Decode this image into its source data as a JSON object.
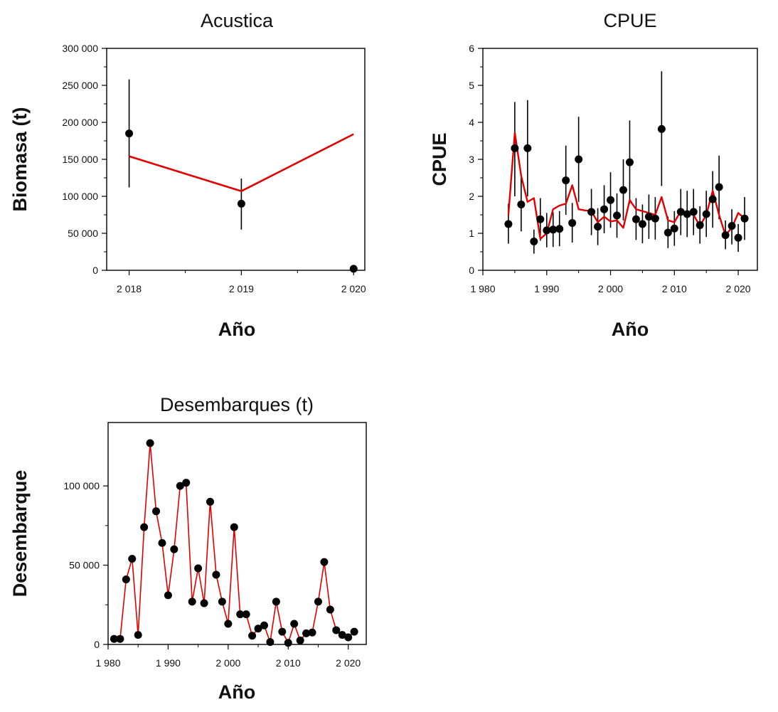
{
  "colors": {
    "model_line": "#e00000",
    "observed_points": "#000000",
    "error_bars": "#000000"
  },
  "chart_data": [
    {
      "id": "acustica",
      "type": "scatter",
      "title": "Acustica",
      "xlabel": "Año",
      "ylabel": "Biomasa (t)",
      "xlim": [
        2017.8,
        2020.1
      ],
      "ylim": [
        0,
        300000
      ],
      "xticks": [
        2018,
        2019,
        2020
      ],
      "xtick_labels": [
        "2 018",
        "2 019",
        "2 020"
      ],
      "yticks": [
        0,
        50000,
        100000,
        150000,
        200000,
        250000,
        300000
      ],
      "ytick_labels": [
        "0",
        "50 000",
        "100 000",
        "150 000",
        "200 000",
        "250 000",
        "300 000"
      ],
      "points": [
        {
          "x": 2018,
          "y": 185000,
          "lo": 112000,
          "hi": 258000
        },
        {
          "x": 2019,
          "y": 90000,
          "lo": 55000,
          "hi": 124000
        },
        {
          "x": 2020,
          "y": 2000,
          "lo": null,
          "hi": null
        }
      ],
      "line": {
        "x": [
          2018,
          2019,
          2020
        ],
        "y": [
          154000,
          107000,
          184000
        ]
      }
    },
    {
      "id": "cpue",
      "type": "scatter",
      "title": "CPUE",
      "xlabel": "Año",
      "ylabel": "CPUE",
      "xlim": [
        1980,
        2023
      ],
      "ylim": [
        0,
        6
      ],
      "xticks": [
        1980,
        1990,
        2000,
        2010,
        2020
      ],
      "xtick_labels": [
        "1 980",
        "1 990",
        "2 000",
        "2 010",
        "2 020"
      ],
      "yticks": [
        0,
        1,
        2,
        3,
        4,
        5,
        6
      ],
      "ytick_labels": [
        "0",
        "1",
        "2",
        "3",
        "4",
        "5",
        "6"
      ],
      "points": [
        {
          "x": 1984,
          "y": 1.25,
          "lo": 0.72,
          "hi": 1.8
        },
        {
          "x": 1985,
          "y": 3.3,
          "lo": 2.0,
          "hi": 4.55
        },
        {
          "x": 1986,
          "y": 1.78,
          "lo": 1.05,
          "hi": 2.5
        },
        {
          "x": 1987,
          "y": 3.3,
          "lo": 2.0,
          "hi": 4.6
        },
        {
          "x": 1988,
          "y": 0.78,
          "lo": 0.45,
          "hi": 1.1
        },
        {
          "x": 1989,
          "y": 1.38,
          "lo": 0.8,
          "hi": 1.95
        },
        {
          "x": 1990,
          "y": 1.08,
          "lo": 0.62,
          "hi": 1.55
        },
        {
          "x": 1991,
          "y": 1.1,
          "lo": 0.63,
          "hi": 1.57
        },
        {
          "x": 1992,
          "y": 1.12,
          "lo": 0.65,
          "hi": 1.6
        },
        {
          "x": 1993,
          "y": 2.43,
          "lo": 1.5,
          "hi": 3.37
        },
        {
          "x": 1994,
          "y": 1.28,
          "lo": 0.75,
          "hi": 1.82
        },
        {
          "x": 1995,
          "y": 3.0,
          "lo": 1.85,
          "hi": 4.15
        },
        {
          "x": 1997,
          "y": 1.58,
          "lo": 0.95,
          "hi": 2.2
        },
        {
          "x": 1998,
          "y": 1.18,
          "lo": 0.68,
          "hi": 1.68
        },
        {
          "x": 1999,
          "y": 1.65,
          "lo": 1.0,
          "hi": 2.3
        },
        {
          "x": 2000,
          "y": 1.9,
          "lo": 1.15,
          "hi": 2.65
        },
        {
          "x": 2001,
          "y": 1.48,
          "lo": 0.88,
          "hi": 2.08
        },
        {
          "x": 2002,
          "y": 2.17,
          "lo": 1.35,
          "hi": 3.0
        },
        {
          "x": 2003,
          "y": 2.92,
          "lo": 1.8,
          "hi": 4.05
        },
        {
          "x": 2004,
          "y": 1.38,
          "lo": 0.82,
          "hi": 1.95
        },
        {
          "x": 2005,
          "y": 1.25,
          "lo": 0.73,
          "hi": 1.78
        },
        {
          "x": 2006,
          "y": 1.45,
          "lo": 0.85,
          "hi": 2.05
        },
        {
          "x": 2007,
          "y": 1.4,
          "lo": 0.83,
          "hi": 1.98
        },
        {
          "x": 2008,
          "y": 3.82,
          "lo": 2.28,
          "hi": 5.38
        },
        {
          "x": 2009,
          "y": 1.02,
          "lo": 0.6,
          "hi": 1.45
        },
        {
          "x": 2010,
          "y": 1.13,
          "lo": 0.66,
          "hi": 1.6
        },
        {
          "x": 2011,
          "y": 1.58,
          "lo": 0.95,
          "hi": 2.2
        },
        {
          "x": 2012,
          "y": 1.52,
          "lo": 0.9,
          "hi": 2.15
        },
        {
          "x": 2013,
          "y": 1.58,
          "lo": 0.95,
          "hi": 2.2
        },
        {
          "x": 2014,
          "y": 1.22,
          "lo": 0.72,
          "hi": 1.73
        },
        {
          "x": 2015,
          "y": 1.52,
          "lo": 0.9,
          "hi": 2.15
        },
        {
          "x": 2016,
          "y": 1.92,
          "lo": 1.15,
          "hi": 2.68
        },
        {
          "x": 2017,
          "y": 2.25,
          "lo": 1.38,
          "hi": 3.1
        },
        {
          "x": 2018,
          "y": 0.95,
          "lo": 0.57,
          "hi": 1.35
        },
        {
          "x": 2019,
          "y": 1.2,
          "lo": 0.7,
          "hi": 1.65
        },
        {
          "x": 2020,
          "y": 0.88,
          "lo": 0.5,
          "hi": 1.25
        },
        {
          "x": 2021,
          "y": 1.4,
          "lo": 0.82,
          "hi": 1.98
        }
      ],
      "line": {
        "x": [
          1984,
          1985,
          1986,
          1987,
          1988,
          1989,
          1990,
          1991,
          1992,
          1993,
          1994,
          1995,
          1996,
          1997,
          1998,
          1999,
          2000,
          2001,
          2002,
          2003,
          2004,
          2005,
          2006,
          2007,
          2008,
          2009,
          2010,
          2011,
          2012,
          2013,
          2014,
          2015,
          2016,
          2017,
          2018,
          2019,
          2020,
          2021
        ],
        "y": [
          1.5,
          3.72,
          2.55,
          1.85,
          1.95,
          0.85,
          1.0,
          1.65,
          1.75,
          1.8,
          2.3,
          1.65,
          1.62,
          1.6,
          1.3,
          1.45,
          1.32,
          1.35,
          1.15,
          1.9,
          1.65,
          1.6,
          1.55,
          1.5,
          1.98,
          1.35,
          1.3,
          1.6,
          1.55,
          1.5,
          1.2,
          1.5,
          2.15,
          1.5,
          0.95,
          1.15,
          1.55,
          1.4
        ]
      }
    },
    {
      "id": "desembarques",
      "type": "line",
      "title": "Desembarques (t)",
      "xlabel": "Año",
      "ylabel": "Desembarque",
      "xlim": [
        1980,
        2023
      ],
      "ylim": [
        0,
        140000
      ],
      "xticks": [
        1980,
        1990,
        2000,
        2010,
        2020
      ],
      "xtick_labels": [
        "1 980",
        "1 990",
        "2 000",
        "2 010",
        "2 020"
      ],
      "yticks": [
        0,
        50000,
        100000
      ],
      "ytick_labels": [
        "0",
        "50 000",
        "100 000"
      ],
      "points": [
        {
          "x": 1981,
          "y": 3500
        },
        {
          "x": 1982,
          "y": 3500
        },
        {
          "x": 1983,
          "y": 41000
        },
        {
          "x": 1984,
          "y": 54000
        },
        {
          "x": 1985,
          "y": 6000
        },
        {
          "x": 1986,
          "y": 74000
        },
        {
          "x": 1987,
          "y": 127000
        },
        {
          "x": 1988,
          "y": 84000
        },
        {
          "x": 1989,
          "y": 64000
        },
        {
          "x": 1990,
          "y": 31000
        },
        {
          "x": 1991,
          "y": 60000
        },
        {
          "x": 1992,
          "y": 100000
        },
        {
          "x": 1993,
          "y": 102000
        },
        {
          "x": 1994,
          "y": 27000
        },
        {
          "x": 1995,
          "y": 48000
        },
        {
          "x": 1996,
          "y": 26000
        },
        {
          "x": 1997,
          "y": 90000
        },
        {
          "x": 1998,
          "y": 44000
        },
        {
          "x": 1999,
          "y": 27000
        },
        {
          "x": 2000,
          "y": 13000
        },
        {
          "x": 2001,
          "y": 74000
        },
        {
          "x": 2002,
          "y": 19000
        },
        {
          "x": 2003,
          "y": 19000
        },
        {
          "x": 2004,
          "y": 5500
        },
        {
          "x": 2005,
          "y": 10000
        },
        {
          "x": 2006,
          "y": 12000
        },
        {
          "x": 2007,
          "y": 1500
        },
        {
          "x": 2008,
          "y": 27000
        },
        {
          "x": 2009,
          "y": 8000
        },
        {
          "x": 2010,
          "y": 1000
        },
        {
          "x": 2011,
          "y": 13000
        },
        {
          "x": 2012,
          "y": 2500
        },
        {
          "x": 2013,
          "y": 7000
        },
        {
          "x": 2014,
          "y": 7500
        },
        {
          "x": 2015,
          "y": 27000
        },
        {
          "x": 2016,
          "y": 52000
        },
        {
          "x": 2017,
          "y": 22000
        },
        {
          "x": 2018,
          "y": 9000
        },
        {
          "x": 2019,
          "y": 6000
        },
        {
          "x": 2020,
          "y": 4500
        },
        {
          "x": 2021,
          "y": 8000
        }
      ]
    }
  ]
}
